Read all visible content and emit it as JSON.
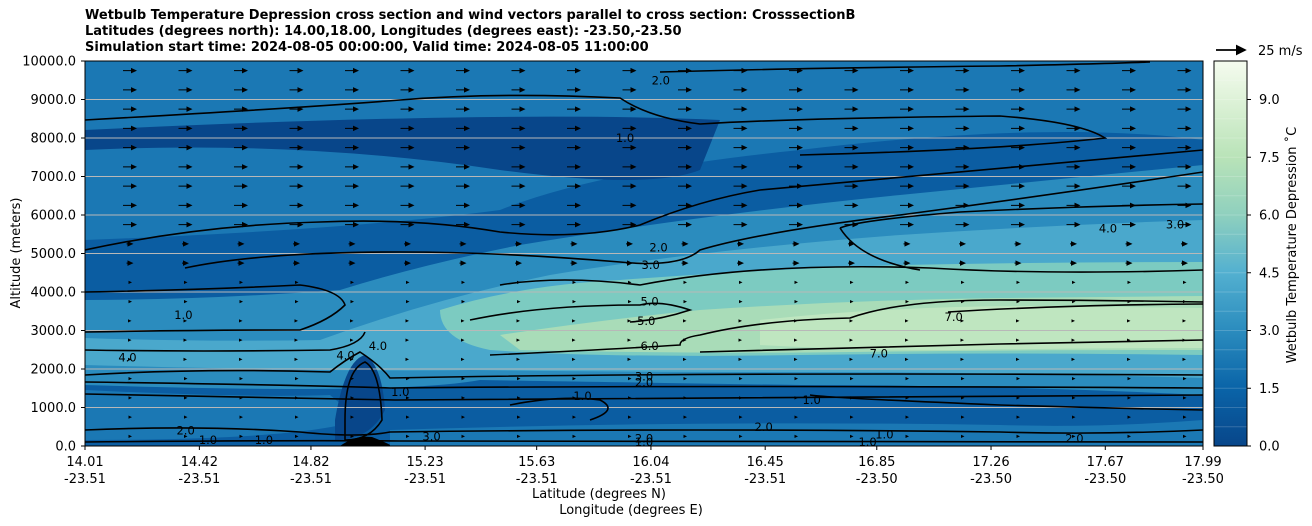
{
  "chart_data": {
    "type": "contour",
    "title_lines": [
      "Wetbulb Temperature Depression cross section and wind vectors parallel to cross section: CrosssectionB",
      "Latitudes (degrees north): 14.00,18.00, Longitudes (degrees east): -23.50,-23.50",
      "Simulation start time: 2024-08-05 00:00:00, Valid time: 2024-08-05 11:00:00"
    ],
    "ylabel": "Altitude (meters)",
    "xlabel_lat": "Latitude (degrees N)",
    "xlabel_lon": "Longitude (degrees E)",
    "ylim": [
      0,
      10000
    ],
    "y_ticks": [
      "0.0",
      "1000.0",
      "2000.0",
      "3000.0",
      "4000.0",
      "5000.0",
      "6000.0",
      "7000.0",
      "8000.0",
      "9000.0",
      "10000.0"
    ],
    "x_ticks": [
      {
        "lat": "14.01",
        "lon": "-23.51",
        "pos": 0.0
      },
      {
        "lat": "14.42",
        "lon": "-23.51",
        "pos": 0.1023
      },
      {
        "lat": "14.82",
        "lon": "-23.51",
        "pos": 0.2021
      },
      {
        "lat": "15.23",
        "lon": "-23.51",
        "pos": 0.3042
      },
      {
        "lat": "15.63",
        "lon": "-23.51",
        "pos": 0.404
      },
      {
        "lat": "16.04",
        "lon": "-23.51",
        "pos": 0.5062
      },
      {
        "lat": "16.45",
        "lon": "-23.51",
        "pos": 0.6084
      },
      {
        "lat": "16.85",
        "lon": "-23.50",
        "pos": 0.7082
      },
      {
        "lat": "17.26",
        "lon": "-23.50",
        "pos": 0.8104
      },
      {
        "lat": "17.67",
        "lon": "-23.50",
        "pos": 0.9126
      },
      {
        "lat": "17.99",
        "lon": "-23.50",
        "pos": 1.0
      }
    ],
    "colorbar": {
      "label": "Wetbulb Temperature Depression ˚C",
      "range": [
        0,
        10
      ],
      "ticks": [
        "0.0",
        "1.5",
        "3.0",
        "4.5",
        "6.0",
        "7.5",
        "9.0"
      ],
      "tick_values": [
        0,
        1.5,
        3,
        4.5,
        6,
        7.5,
        9
      ]
    },
    "quiver_key": "25 m/s",
    "contour_labels": [
      {
        "text": "2.0",
        "x": 0.513,
        "y": 5150
      },
      {
        "text": "3.0",
        "x": 0.506,
        "y": 4700
      },
      {
        "text": "5.0",
        "x": 0.505,
        "y": 3750
      },
      {
        "text": "5.0",
        "x": 0.502,
        "y": 3250
      },
      {
        "text": "6.0",
        "x": 0.505,
        "y": 2600
      },
      {
        "text": "7.0",
        "x": 0.71,
        "y": 2400
      },
      {
        "text": "7.0",
        "x": 0.777,
        "y": 3350
      },
      {
        "text": "4.0",
        "x": 0.915,
        "y": 5650
      },
      {
        "text": "3.0",
        "x": 0.975,
        "y": 5750
      },
      {
        "text": "1.0",
        "x": 0.483,
        "y": 8000
      },
      {
        "text": "2.0",
        "x": 0.515,
        "y": 9500
      },
      {
        "text": "1.0",
        "x": 0.088,
        "y": 3400
      },
      {
        "text": "4.0",
        "x": 0.038,
        "y": 2300
      },
      {
        "text": "4.0",
        "x": 0.233,
        "y": 2350
      },
      {
        "text": "4.0",
        "x": 0.262,
        "y": 2600
      },
      {
        "text": "1.0",
        "x": 0.282,
        "y": 1400
      },
      {
        "text": "3.0",
        "x": 0.5,
        "y": 1800
      },
      {
        "text": "2.0",
        "x": 0.5,
        "y": 1650
      },
      {
        "text": "1.0",
        "x": 0.445,
        "y": 1300
      },
      {
        "text": "1.0",
        "x": 0.65,
        "y": 1200
      },
      {
        "text": "2.0",
        "x": 0.5,
        "y": 200
      },
      {
        "text": "1.0",
        "x": 0.5,
        "y": 100
      },
      {
        "text": "2.0",
        "x": 0.09,
        "y": 400
      },
      {
        "text": "1.0",
        "x": 0.11,
        "y": 150
      },
      {
        "text": "1.0",
        "x": 0.16,
        "y": 150
      },
      {
        "text": "3.0",
        "x": 0.31,
        "y": 250
      },
      {
        "text": "2.0",
        "x": 0.607,
        "y": 500
      },
      {
        "text": "1.0",
        "x": 0.715,
        "y": 300
      },
      {
        "text": "1.0",
        "x": 0.7,
        "y": 100
      },
      {
        "text": "2.0",
        "x": 0.885,
        "y": 200
      }
    ]
  }
}
